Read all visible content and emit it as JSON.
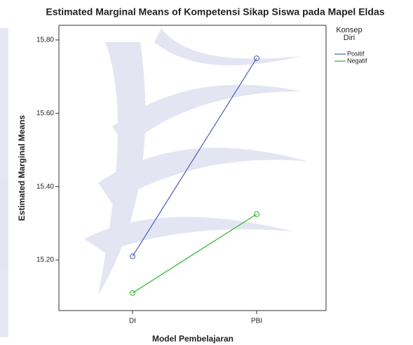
{
  "chart_data": {
    "type": "line",
    "title": "Estimated Marginal Means of Kompetensi Sikap Siswa pada Mapel Eldas",
    "x_label": "Model Pembelajaran",
    "y_label": "Estimated Marginal Means",
    "legend_title": "Konsep Diri",
    "categories": [
      "DI",
      "PBI"
    ],
    "series": [
      {
        "name": "Positif",
        "color": "#4a5fb5",
        "values": [
          15.21,
          15.75
        ]
      },
      {
        "name": "Negatif",
        "color": "#2db52d",
        "values": [
          15.11,
          15.325
        ]
      }
    ],
    "ylim": [
      15.062,
      15.84
    ],
    "yticks": [
      {
        "value": 15.2,
        "label": "15.20"
      },
      {
        "value": 15.4,
        "label": "15.40"
      },
      {
        "value": 15.6,
        "label": "15.60"
      },
      {
        "value": 15.8,
        "label": "15.80"
      }
    ]
  }
}
